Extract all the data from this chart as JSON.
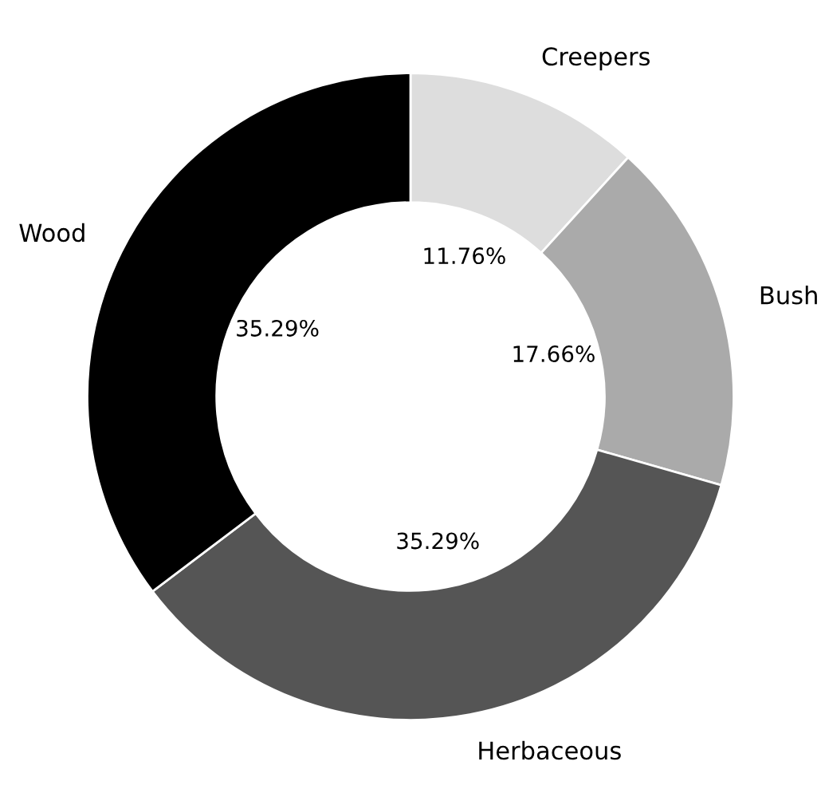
{
  "chart_data": {
    "type": "donut",
    "categories": [
      "Creepers",
      "Bush",
      "Herbaceous",
      "Wood"
    ],
    "values": [
      11.76,
      17.66,
      35.29,
      35.29
    ],
    "value_labels": [
      "11.76%",
      "17.66%",
      "35.29%",
      "35.29%"
    ],
    "colors": [
      "#dddddd",
      "#aaaaaa",
      "#555555",
      "#000000"
    ],
    "legend": false
  }
}
